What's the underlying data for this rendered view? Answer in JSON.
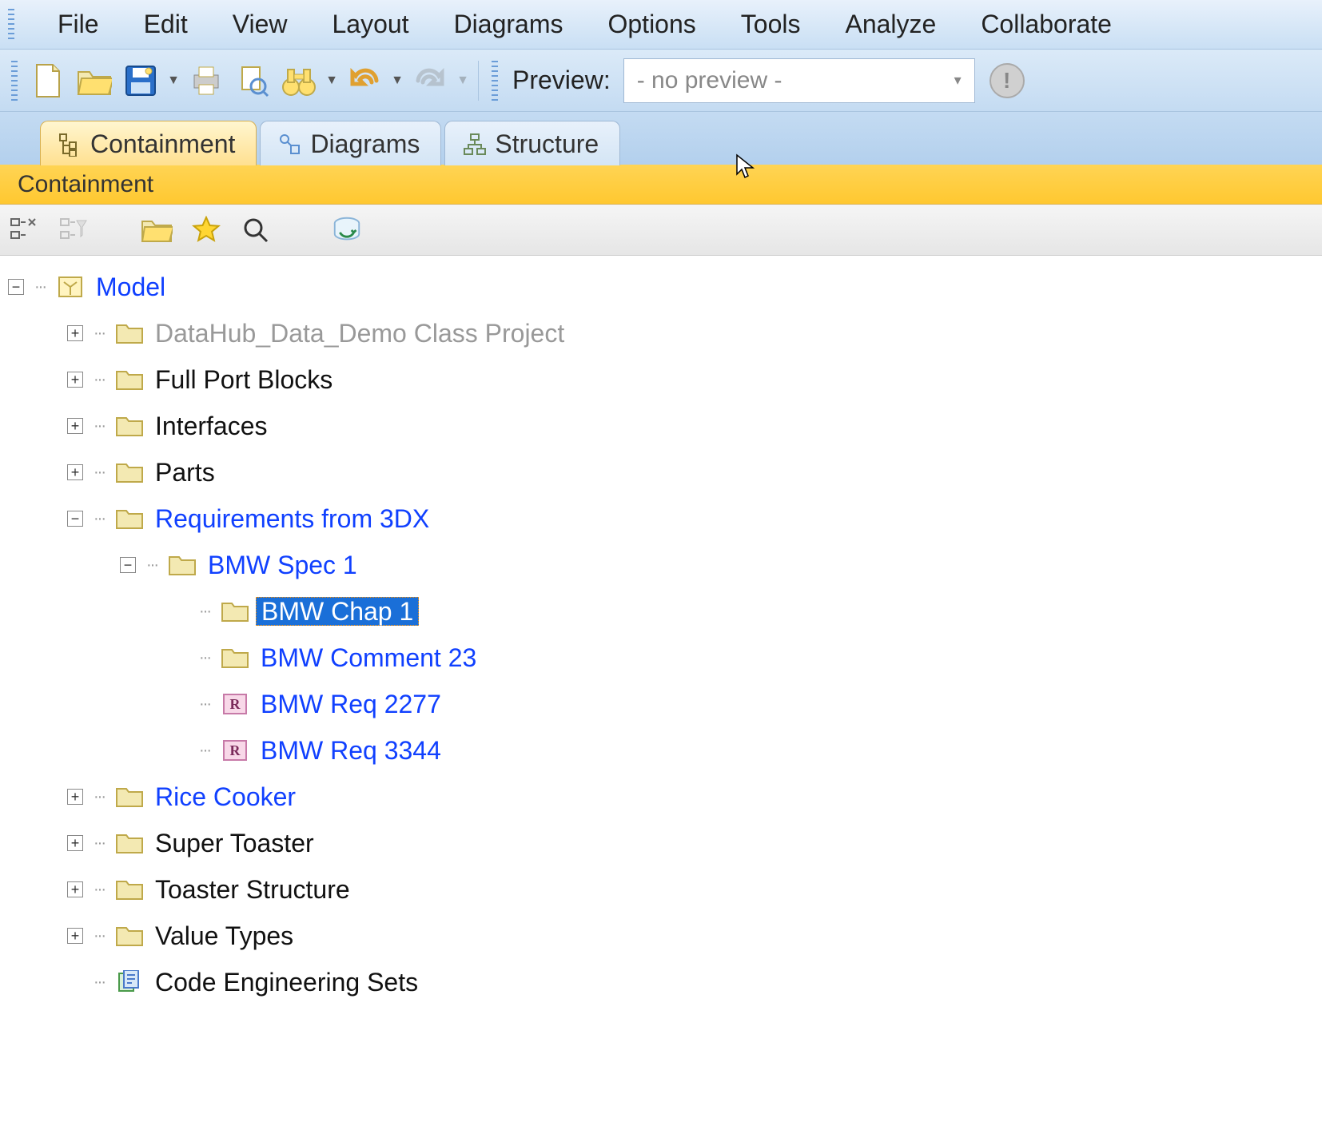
{
  "menubar": [
    "File",
    "Edit",
    "View",
    "Layout",
    "Diagrams",
    "Options",
    "Tools",
    "Analyze",
    "Collaborate"
  ],
  "toolbar": {
    "preview_label": "Preview:",
    "preview_value": "- no preview -"
  },
  "tabs": [
    {
      "label": "Containment",
      "active": true
    },
    {
      "label": "Diagrams",
      "active": false
    },
    {
      "label": "Structure",
      "active": false
    }
  ],
  "panel": {
    "title": "Containment"
  },
  "tree": {
    "root": {
      "label": "Model",
      "style": "blue",
      "icon": "model",
      "expand": "minus"
    },
    "children": [
      {
        "label": "DataHub_Data_Demo Class Project",
        "style": "gray",
        "icon": "folder",
        "expand": "plus",
        "indent": 1
      },
      {
        "label": "Full Port Blocks",
        "style": "black",
        "icon": "folder",
        "expand": "plus",
        "indent": 1
      },
      {
        "label": "Interfaces",
        "style": "black",
        "icon": "folder",
        "expand": "plus",
        "indent": 1
      },
      {
        "label": "Parts",
        "style": "black",
        "icon": "folder",
        "expand": "plus",
        "indent": 1
      },
      {
        "label": "Requirements from 3DX",
        "style": "blue",
        "icon": "folder",
        "expand": "minus",
        "indent": 1
      },
      {
        "label": "BMW Spec 1",
        "style": "blue",
        "icon": "folder",
        "expand": "minus",
        "indent": 2
      },
      {
        "label": "BMW Chap 1",
        "style": "sel",
        "icon": "folder",
        "expand": "none",
        "indent": 3
      },
      {
        "label": "BMW Comment 23",
        "style": "blue",
        "icon": "folder",
        "expand": "none",
        "indent": 3
      },
      {
        "label": "BMW Req 2277",
        "style": "blue",
        "icon": "req",
        "expand": "none",
        "indent": 3
      },
      {
        "label": "BMW Req 3344",
        "style": "blue",
        "icon": "req",
        "expand": "none",
        "indent": 3
      },
      {
        "label": "Rice Cooker",
        "style": "blue",
        "icon": "folder",
        "expand": "plus",
        "indent": 1
      },
      {
        "label": "Super Toaster",
        "style": "black",
        "icon": "folder",
        "expand": "plus",
        "indent": 1
      },
      {
        "label": "Toaster Structure",
        "style": "black",
        "icon": "folder",
        "expand": "plus",
        "indent": 1
      },
      {
        "label": "Value Types",
        "style": "black",
        "icon": "folder",
        "expand": "plus",
        "indent": 1
      },
      {
        "label": "Code Engineering Sets",
        "style": "black",
        "icon": "code",
        "expand": "none",
        "indent": 1,
        "noexp": true
      }
    ]
  },
  "colors": {
    "folder_fill": "#f3e9b2",
    "folder_stroke": "#bfa94a",
    "req_fill": "#f8d8e8",
    "req_stroke": "#c77aa8",
    "model_fill": "#fff4c0",
    "model_stroke": "#bfa94a"
  }
}
